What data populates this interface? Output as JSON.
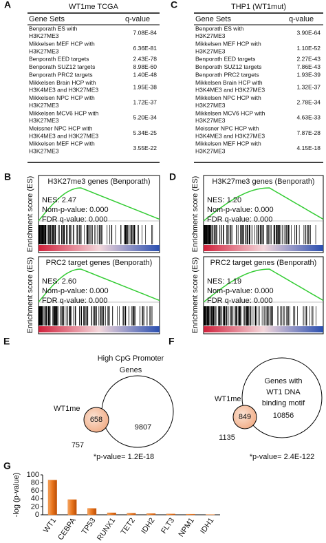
{
  "panels": {
    "A": {
      "label": "A",
      "title": "WT1me TCGA",
      "header": [
        "Gene Sets",
        "q-value"
      ],
      "rows": [
        {
          "name": [
            "Benporath ES with",
            "H3K27ME3"
          ],
          "q": "7.08E-84"
        },
        {
          "name": [
            "Mikkelsen MEF HCP with",
            "H3K27ME3"
          ],
          "q": "6.36E-81"
        },
        {
          "name": [
            "Benporath EED targets"
          ],
          "q": "2.43E-78"
        },
        {
          "name": [
            "Benporath SUZ12 targets"
          ],
          "q": "8.98E-60"
        },
        {
          "name": [
            "Benporath PRC2 targets"
          ],
          "q": "1.40E-48"
        },
        {
          "name": [
            "Mikkelsen Brain HCP with",
            "H3K4ME3 and H3K27ME3"
          ],
          "q": "1.95E-38"
        },
        {
          "name": [
            "Mikkelsen NPC HCP with",
            "H3K27ME3"
          ],
          "q": "1.72E-37"
        },
        {
          "name": [
            "Mikkelsen MCV6 HCP with",
            "H3K27ME3"
          ],
          "q": "5.20E-34"
        },
        {
          "name": [
            "Meissner NPC HCP with",
            "H3K4ME3 and H3K27ME3"
          ],
          "q": "5.34E-25"
        },
        {
          "name": [
            "Mikkelsen MEF HCP with",
            "H3K27ME3"
          ],
          "q": "3.55E-22"
        }
      ]
    },
    "C": {
      "label": "C",
      "title": "THP1 (WT1mut)",
      "header": [
        "Gene Sets",
        "q-value"
      ],
      "rows": [
        {
          "name": [
            "Benporath ES with",
            "H3K27ME3"
          ],
          "q": "3.90E-64"
        },
        {
          "name": [
            "Mikkelsen MEF HCP with",
            "H3K27ME3"
          ],
          "q": "1.10E-52"
        },
        {
          "name": [
            "Benporath EED targets"
          ],
          "q": "2.27E-43"
        },
        {
          "name": [
            "Benporath SUZ12 targets"
          ],
          "q": "7.86E-43"
        },
        {
          "name": [
            "Benporath PRC2 targets"
          ],
          "q": "1.93E-39"
        },
        {
          "name": [
            "Mikkelsen Brain HCP with",
            "H3K4ME3 and H3K27ME3"
          ],
          "q": "1.32E-37"
        },
        {
          "name": [
            "Mikkelsen NPC HCP with",
            "H3K27ME3"
          ],
          "q": "2.78E-34"
        },
        {
          "name": [
            "Mikkelsen MCV6 HCP with",
            "H3K27ME3"
          ],
          "q": "4.63E-33"
        },
        {
          "name": [
            "Meissner NPC HCP with",
            "H3K4ME3 and H3K27ME3"
          ],
          "q": "7.87E-28"
        },
        {
          "name": [
            "Mikkelsen MEF HCP with",
            "H3K27ME3"
          ],
          "q": "4.15E-18"
        }
      ]
    },
    "B": {
      "label": "B",
      "plots": [
        {
          "title": "H3K27me3 genes (Benporath)",
          "ylabel": "Enrichment score (ES)",
          "stats": [
            "NES: 2.47",
            "Nom-p-value: 0.000",
            "FDR q-value: 0.000"
          ]
        },
        {
          "title": "PRC2 target genes (Benporath)",
          "ylabel": "Enrichment score (ES)",
          "stats": [
            "NES: 2.60",
            "Nom-p-value: 0.000",
            "FDR q-value: 0.000"
          ]
        }
      ]
    },
    "D": {
      "label": "D",
      "plots": [
        {
          "title": "H3K27me3 genes (Benporath)",
          "ylabel": "Enrichment score (ES)",
          "stats": [
            "NES: 1.20",
            "Nom-p-value: 0.000",
            "FDR q-value: 0.000"
          ]
        },
        {
          "title": "PRC2 target genes (Benporath)",
          "ylabel": "Enrichment score (ES)",
          "stats": [
            "NES: 1.19",
            "Nom-p-value: 0.000",
            "FDR q-value: 0.000"
          ]
        }
      ]
    },
    "E": {
      "label": "E",
      "circle_label": [
        "High CpG Promoter",
        "Genes"
      ],
      "set_label": "WT1me",
      "only_left": "757",
      "overlap": "658",
      "only_right": "9807",
      "pvalue": "*p-value= 1.2E-18"
    },
    "F": {
      "label": "F",
      "circle_label": [
        "Genes with",
        "WT1 DNA",
        "binding motif"
      ],
      "set_label": "WT1me",
      "only_left": "1135",
      "overlap": "849",
      "only_right": "10856",
      "pvalue": "*p-value= 2.4E-122"
    }
  },
  "chart_data": {
    "type": "bar",
    "label": "G",
    "ylabel": "-log (p-value)",
    "categories": [
      "WT1",
      "CEBPA",
      "TP53",
      "RUNX1",
      "TET2",
      "IDH2",
      "FLT3",
      "NPM1",
      "IDH1"
    ],
    "values": [
      87,
      38,
      16,
      5,
      4,
      3,
      2,
      1.5,
      0.5
    ],
    "color": "#e8731a",
    "ylim": [
      0,
      100
    ],
    "yticks": [
      0,
      20,
      40,
      60,
      80,
      100
    ]
  }
}
